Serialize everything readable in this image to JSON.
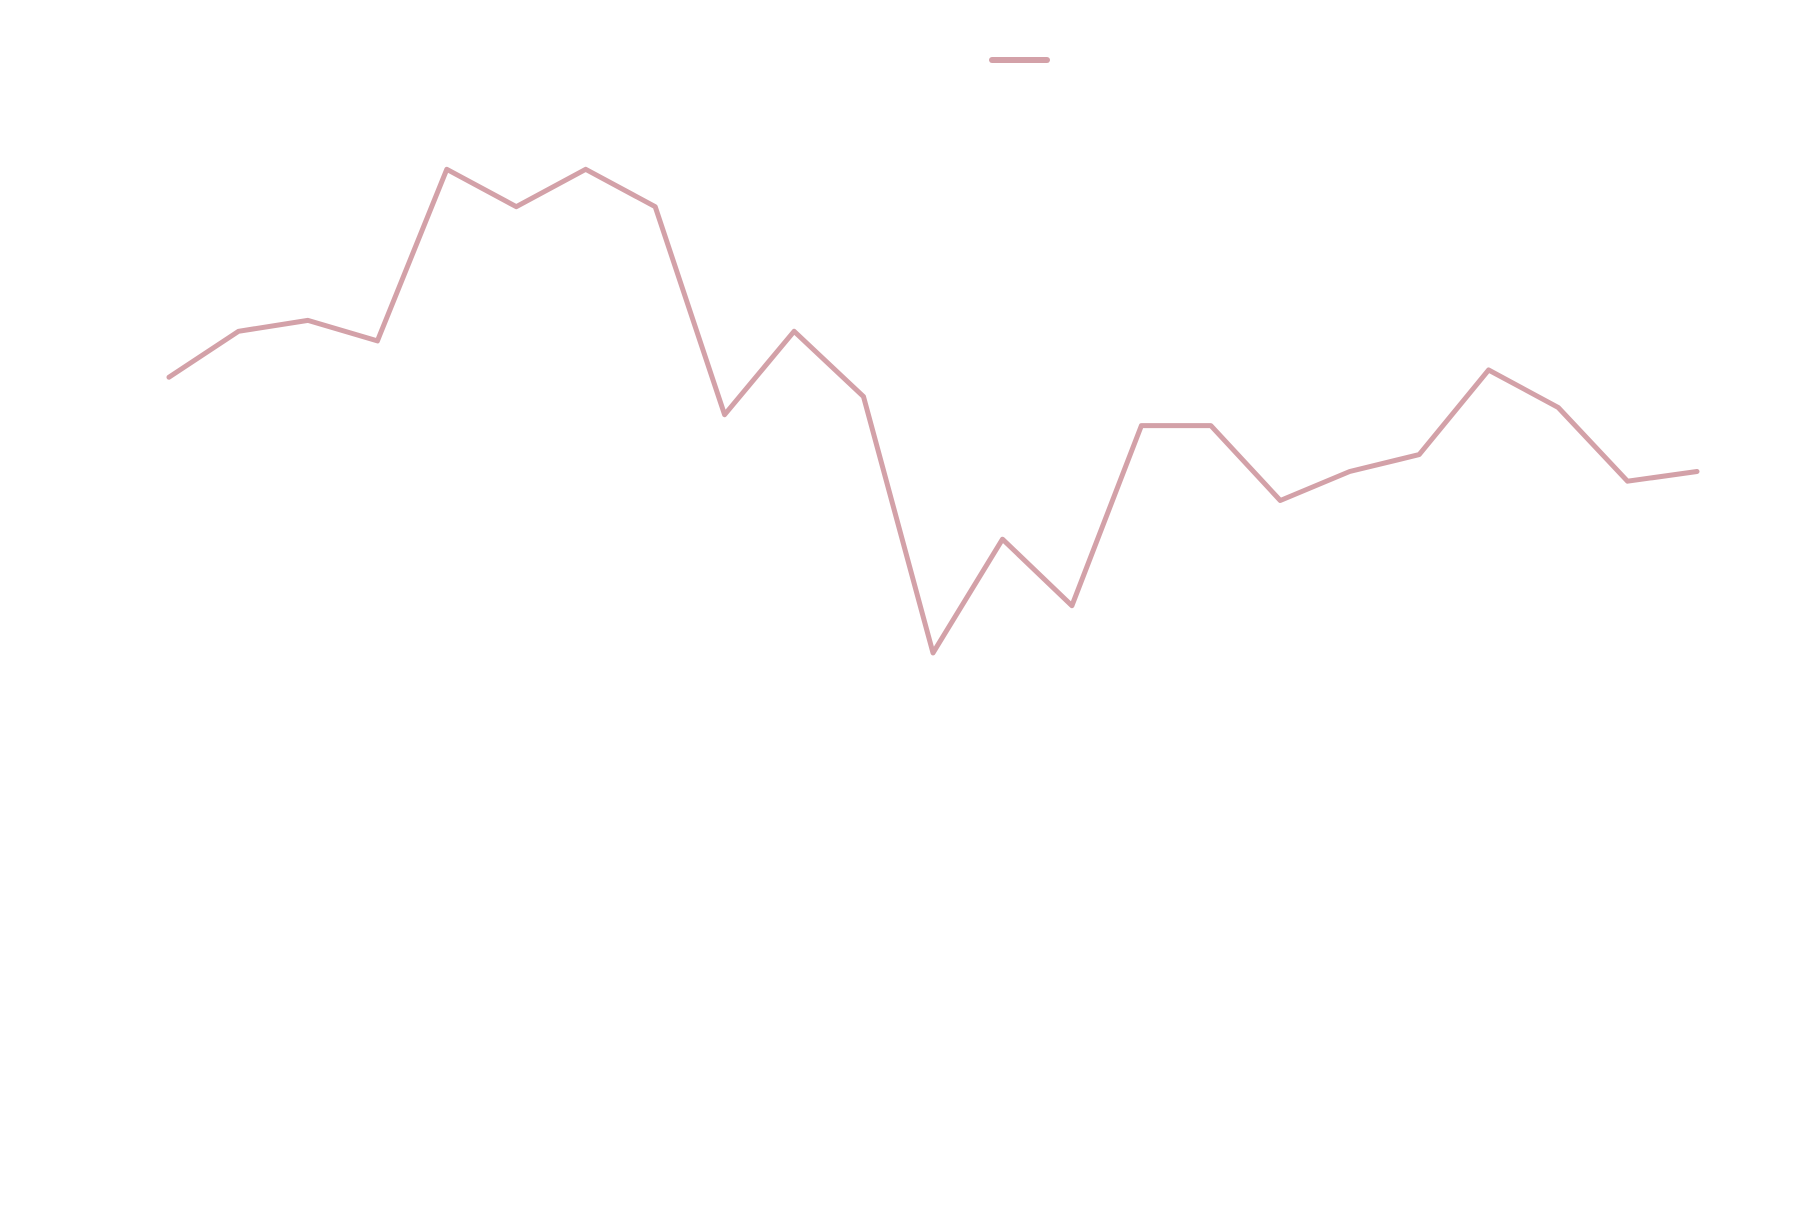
{
  "chart_data": {
    "type": "line",
    "x": [
      0,
      1,
      2,
      3,
      4,
      5,
      6,
      7,
      8,
      9,
      10,
      11,
      12,
      13,
      14,
      15,
      16,
      17,
      18,
      19,
      20,
      21,
      22
    ],
    "xlim": [
      0,
      22
    ],
    "ylim": [
      0,
      100
    ],
    "series": [
      {
        "color": "#d3a1a8",
        "values": [
          68.8,
          72.6,
          73.5,
          71.8,
          86.0,
          82.9,
          86.0,
          82.9,
          65.7,
          72.6,
          67.2,
          46.0,
          55.4,
          49.9,
          64.8,
          64.8,
          58.6,
          61.0,
          62.4,
          69.4,
          66.3,
          60.2,
          61.0
        ]
      }
    ],
    "legend": "top"
  }
}
